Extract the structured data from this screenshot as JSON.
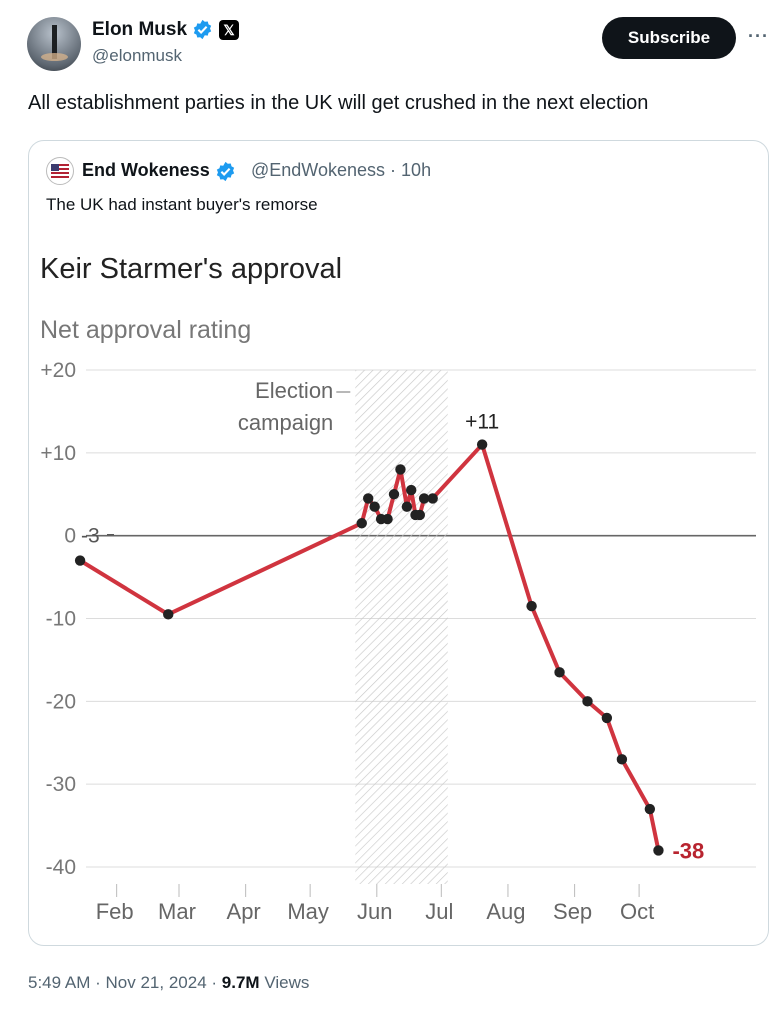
{
  "author": {
    "name": "Elon Musk",
    "handle": "@elonmusk",
    "affiliation_badge": "𝕏"
  },
  "actions": {
    "subscribe_label": "Subscribe",
    "more_label": "···"
  },
  "tweet": {
    "text": "All establishment parties in the UK will get crushed in the next election"
  },
  "quoted": {
    "name": "End Wokeness",
    "handle": "@EndWokeness",
    "separator": "·",
    "age": "10h",
    "text": "The UK had instant buyer's remorse"
  },
  "meta": {
    "time": "5:49 AM",
    "separator": "·",
    "date": "Nov 21, 2024",
    "views_count": "9.7M",
    "views_label": "Views"
  },
  "colors": {
    "verified": "#1d9bf0",
    "line": "#d0343f",
    "negative_label": "#b8242f"
  },
  "chart_data": {
    "type": "line",
    "title": "Keir Starmer's approval",
    "subtitle": "Net approval rating",
    "x_tick_labels": [
      "Feb",
      "Mar",
      "Apr",
      "May",
      "Jun",
      "Jul",
      "Aug",
      "Sep",
      "Oct"
    ],
    "y_tick_labels": [
      "+20",
      "+10",
      "0",
      "-10",
      "-20",
      "-30",
      "-40"
    ],
    "y_ticks": [
      20,
      10,
      0,
      -10,
      -20,
      -30,
      -40
    ],
    "ylim": [
      -40,
      20
    ],
    "grid": true,
    "shaded_region": {
      "label_lines": [
        "Election",
        "campaign"
      ],
      "start": "2024-05-22",
      "end": "2024-07-04"
    },
    "annotations": [
      {
        "text": "-3",
        "x": "2024-01-15",
        "y": -3
      },
      {
        "text": "+11",
        "x": "2024-07-20",
        "y": 11
      },
      {
        "text": "-38",
        "x": "2024-10-10",
        "y": -38
      }
    ],
    "series": [
      {
        "x": [
          "2024-01-15",
          "2024-02-25",
          "2024-05-25",
          "2024-05-28",
          "2024-05-31",
          "2024-06-03",
          "2024-06-06",
          "2024-06-09",
          "2024-06-12",
          "2024-06-15",
          "2024-06-17",
          "2024-06-19",
          "2024-06-21",
          "2024-06-23",
          "2024-06-27",
          "2024-07-20",
          "2024-08-12",
          "2024-08-25",
          "2024-09-07",
          "2024-09-16",
          "2024-09-23",
          "2024-10-06",
          "2024-10-10"
        ],
        "y": [
          -3,
          -9.5,
          1.5,
          4.5,
          3.5,
          2,
          2,
          5,
          8,
          3.5,
          5.5,
          2.5,
          2.5,
          4.5,
          4.5,
          11,
          -8.5,
          -16.5,
          -20,
          -22,
          -27,
          -33,
          -38
        ]
      }
    ]
  }
}
